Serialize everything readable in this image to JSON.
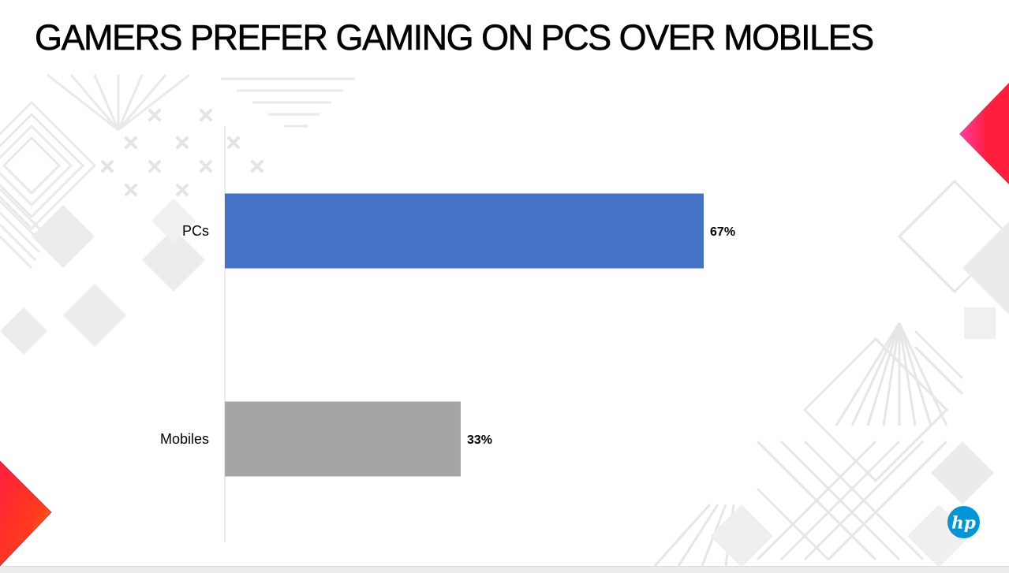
{
  "slide": {
    "title": "GAMERS PREFER GAMING ON PCS OVER MOBILES",
    "logo": "hp"
  },
  "colors": {
    "pcs_bar": "#4472C4",
    "mobiles_bar": "#A5A5A5",
    "accent_red": "#FF1E3C",
    "accent_magenta": "#FF3FA4",
    "accent_orange": "#FF7A00",
    "hp_blue": "#0096D6"
  },
  "chart_data": {
    "type": "bar",
    "orientation": "horizontal",
    "title": "GAMERS PREFER GAMING ON PCS OVER MOBILES",
    "categories": [
      "PCs",
      "Mobiles"
    ],
    "values": [
      67,
      33
    ],
    "data_labels": [
      "67%",
      "33%"
    ],
    "unit": "%",
    "xlim": [
      0,
      100
    ],
    "xlabel": "",
    "ylabel": "",
    "grid": false,
    "legend": "none",
    "bar_colors": [
      "#4472C4",
      "#A5A5A5"
    ]
  }
}
